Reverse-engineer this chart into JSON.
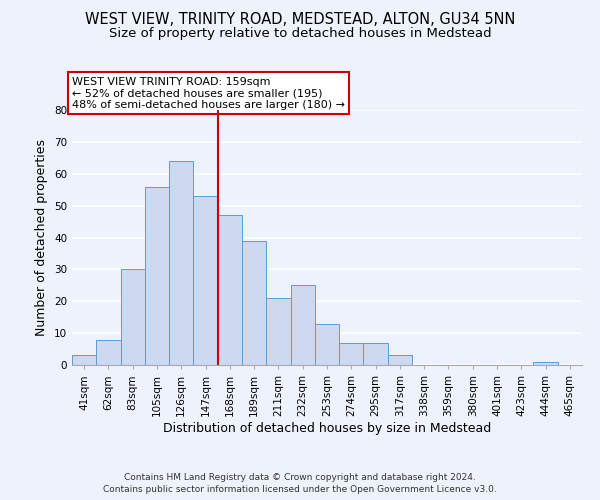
{
  "title": "WEST VIEW, TRINITY ROAD, MEDSTEAD, ALTON, GU34 5NN",
  "subtitle": "Size of property relative to detached houses in Medstead",
  "xlabel": "Distribution of detached houses by size in Medstead",
  "ylabel": "Number of detached properties",
  "bar_labels": [
    "41sqm",
    "62sqm",
    "83sqm",
    "105sqm",
    "126sqm",
    "147sqm",
    "168sqm",
    "189sqm",
    "211sqm",
    "232sqm",
    "253sqm",
    "274sqm",
    "295sqm",
    "317sqm",
    "338sqm",
    "359sqm",
    "380sqm",
    "401sqm",
    "423sqm",
    "444sqm",
    "465sqm"
  ],
  "bar_values": [
    3,
    8,
    30,
    56,
    64,
    53,
    47,
    39,
    21,
    25,
    13,
    7,
    7,
    3,
    0,
    0,
    0,
    0,
    0,
    1,
    0
  ],
  "bar_color": "#ccd9f0",
  "bar_edge_color": "#5b9bd5",
  "ylim": [
    0,
    80
  ],
  "yticks": [
    0,
    10,
    20,
    30,
    40,
    50,
    60,
    70,
    80
  ],
  "vline_x": 5.5,
  "vline_color": "#cc0000",
  "annotation_title": "WEST VIEW TRINITY ROAD: 159sqm",
  "annotation_line1": "← 52% of detached houses are smaller (195)",
  "annotation_line2": "48% of semi-detached houses are larger (180) →",
  "annotation_box_color": "#ffffff",
  "annotation_box_edge": "#cc0000",
  "footer1": "Contains HM Land Registry data © Crown copyright and database right 2024.",
  "footer2": "Contains public sector information licensed under the Open Government Licence v3.0.",
  "bg_color": "#eef2fc",
  "grid_color": "#ffffff",
  "title_fontsize": 10.5,
  "subtitle_fontsize": 9.5,
  "axis_label_fontsize": 9,
  "tick_fontsize": 7.5,
  "annotation_fontsize": 8,
  "footer_fontsize": 6.5
}
